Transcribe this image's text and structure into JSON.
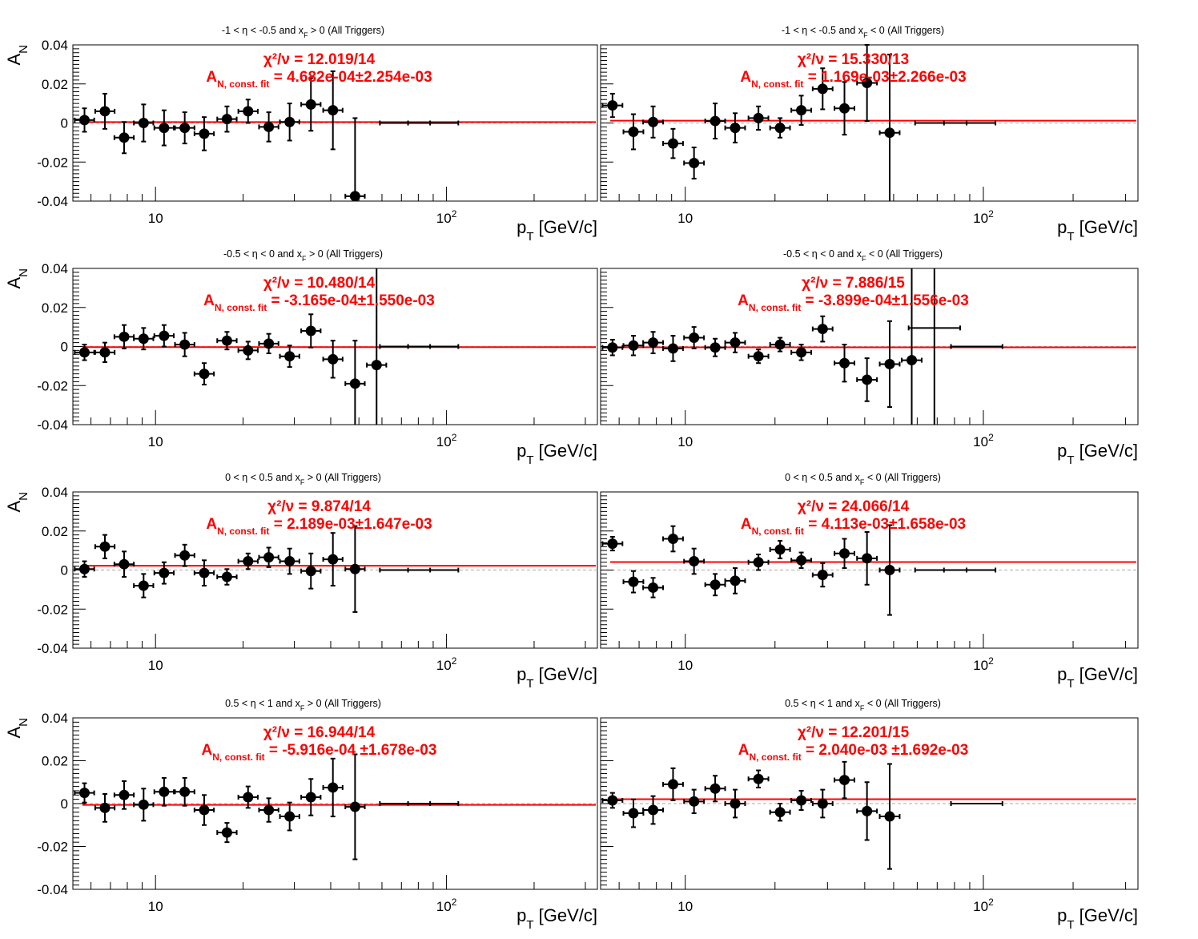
{
  "chart_data": [
    {
      "type": "scatter",
      "title": "-1 < η < -0.5 and x_F > 0 (All Triggers)",
      "title_parts": {
        "pre": "-1 < η < -0.5 and x",
        "sub": "F",
        "post": " > 0 (All Triggers)"
      },
      "xlabel": "p_T [GeV/c]",
      "ylabel": "A_N",
      "x_scale": "log",
      "xlim": [
        5.2,
        330
      ],
      "ylim": [
        -0.04,
        0.04
      ],
      "x_ticks": [
        "10",
        "10^2"
      ],
      "y_ticks": [
        "0.04",
        "0.02",
        "0",
        "-0.02",
        "-0.04"
      ],
      "fit": {
        "chi2": "χ²/ν = 12.019/14",
        "label": "A",
        "label_sub": "N, const. fit",
        "value": " = 4.682e-04±2.254e-03",
        "constant": 0.000468
      },
      "series": [
        {
          "x": [
            5.7,
            6.7,
            7.8,
            9.1,
            10.7,
            12.6,
            14.7,
            17.6,
            20.8,
            24.5,
            28.9,
            34.2,
            40.7,
            48.5,
            72,
            90
          ],
          "y": [
            0.0015,
            0.006,
            -0.0075,
            0.0,
            -0.0025,
            -0.0025,
            -0.0055,
            0.002,
            0.006,
            -0.002,
            0.0005,
            0.0095,
            0.0065,
            -0.0375,
            0.0,
            0.0
          ],
          "yerr": [
            0.006,
            0.009,
            0.008,
            0.0095,
            0.009,
            0.008,
            0.0085,
            0.0065,
            0.006,
            0.0075,
            0.0095,
            0.0135,
            0.02,
            0.04,
            0.0,
            0.0
          ]
        }
      ]
    },
    {
      "type": "scatter",
      "title": "-1 < η < -0.5 and x_F < 0 (All Triggers)",
      "title_parts": {
        "pre": "-1 < η < -0.5 and x",
        "sub": "F",
        "post": " < 0 (All Triggers)"
      },
      "xlabel": "p_T [GeV/c]",
      "ylabel": "A_N",
      "x_scale": "log",
      "xlim": [
        5.2,
        330
      ],
      "ylim": [
        -0.04,
        0.04
      ],
      "x_ticks": [
        "10",
        "10^2"
      ],
      "y_ticks": [],
      "fit": {
        "chi2": "χ²/ν = 15.330/13",
        "label": "A",
        "label_sub": "N, const. fit",
        "value": " = 1.169e-03±2.266e-03",
        "constant": 0.00117
      },
      "series": [
        {
          "x": [
            5.7,
            6.7,
            7.8,
            9.1,
            10.7,
            12.6,
            14.7,
            17.6,
            20.8,
            24.5,
            28.9,
            34.2,
            40.7,
            48.5,
            72,
            90
          ],
          "y": [
            0.009,
            -0.0045,
            0.0005,
            -0.0105,
            -0.0205,
            0.001,
            -0.0025,
            0.0025,
            -0.0025,
            0.0065,
            0.0175,
            0.0075,
            0.0205,
            -0.005,
            0.0,
            0.0
          ],
          "yerr": [
            0.006,
            0.009,
            0.008,
            0.0075,
            0.008,
            0.009,
            0.0075,
            0.006,
            0.005,
            0.0075,
            0.0105,
            0.0135,
            0.0195,
            0.04,
            0.0,
            0.0
          ]
        }
      ]
    },
    {
      "type": "scatter",
      "title": "-0.5 < η < 0 and x_F > 0 (All Triggers)",
      "title_parts": {
        "pre": "-0.5 < η < 0 and x",
        "sub": "F",
        "post": " > 0 (All Triggers)"
      },
      "xlabel": "p_T [GeV/c]",
      "ylabel": "A_N",
      "x_scale": "log",
      "xlim": [
        5.2,
        330
      ],
      "ylim": [
        -0.04,
        0.04
      ],
      "x_ticks": [
        "10",
        "10^2"
      ],
      "y_ticks": [
        "0.04",
        "0.02",
        "0",
        "-0.02",
        "-0.04"
      ],
      "fit": {
        "chi2": "χ²/ν = 10.480/14",
        "label": "A",
        "label_sub": "N, const. fit",
        "value": " = -3.165e-04±1.550e-03",
        "constant": -0.000317
      },
      "series": [
        {
          "x": [
            5.7,
            6.7,
            7.8,
            9.1,
            10.7,
            12.6,
            14.7,
            17.6,
            20.8,
            24.5,
            28.9,
            34.2,
            40.7,
            48.5,
            57.5,
            72,
            90
          ],
          "y": [
            -0.003,
            -0.003,
            0.005,
            0.004,
            0.0055,
            0.001,
            -0.014,
            0.003,
            -0.002,
            0.0015,
            -0.005,
            0.008,
            -0.0065,
            -0.019,
            -0.0095,
            0.0,
            0.0
          ],
          "yerr": [
            0.004,
            0.005,
            0.006,
            0.0055,
            0.0055,
            0.006,
            0.0055,
            0.0045,
            0.0045,
            0.005,
            0.0055,
            0.0085,
            0.0095,
            0.022,
            0.05,
            0.0,
            0.0
          ]
        }
      ]
    },
    {
      "type": "scatter",
      "title": "-0.5 < η < 0 and x_F < 0 (All Triggers)",
      "title_parts": {
        "pre": "-0.5 < η < 0 and x",
        "sub": "F",
        "post": " < 0 (All Triggers)"
      },
      "xlabel": "p_T [GeV/c]",
      "ylabel": "A_N",
      "x_scale": "log",
      "xlim": [
        5.2,
        330
      ],
      "ylim": [
        -0.04,
        0.04
      ],
      "x_ticks": [
        "10",
        "10^2"
      ],
      "y_ticks": [],
      "fit": {
        "chi2": "χ²/ν = 7.886/15",
        "label": "A",
        "label_sub": "N, const. fit",
        "value": " = -3.899e-04±1.556e-03",
        "constant": -0.00039
      },
      "series": [
        {
          "x": [
            5.7,
            6.7,
            7.8,
            9.1,
            10.7,
            12.6,
            14.7,
            17.6,
            20.8,
            24.5,
            28.9,
            34.2,
            40.7,
            48.5,
            57.5,
            68.5,
            95
          ],
          "y": [
            -0.0005,
            0.0005,
            0.002,
            -0.001,
            0.0045,
            -0.0005,
            0.002,
            -0.005,
            0.001,
            -0.003,
            0.009,
            -0.0085,
            -0.017,
            -0.009,
            -0.007,
            0.0095,
            0.0
          ],
          "yerr": [
            0.004,
            0.005,
            0.0055,
            0.0065,
            0.0055,
            0.0045,
            0.005,
            0.0035,
            0.0035,
            0.004,
            0.0065,
            0.0095,
            0.011,
            0.022,
            0.05,
            0.05,
            0.0
          ]
        }
      ]
    },
    {
      "type": "scatter",
      "title": "0 < η < 0.5 and x_F > 0 (All Triggers)",
      "title_parts": {
        "pre": "0 < η < 0.5 and x",
        "sub": "F",
        "post": " > 0 (All Triggers)"
      },
      "xlabel": "p_T [GeV/c]",
      "ylabel": "A_N",
      "x_scale": "log",
      "xlim": [
        5.2,
        330
      ],
      "ylim": [
        -0.04,
        0.04
      ],
      "x_ticks": [
        "10",
        "10^2"
      ],
      "y_ticks": [
        "0.04",
        "0.02",
        "0",
        "-0.02",
        "-0.04"
      ],
      "fit": {
        "chi2": "χ²/ν = 9.874/14",
        "label": "A",
        "label_sub": "N, const. fit",
        "value": " = 2.189e-03±1.647e-03",
        "constant": 0.00219
      },
      "series": [
        {
          "x": [
            5.7,
            6.7,
            7.8,
            9.1,
            10.7,
            12.6,
            14.7,
            17.6,
            20.8,
            24.5,
            28.9,
            34.2,
            40.7,
            48.5,
            72,
            90
          ],
          "y": [
            0.0005,
            0.012,
            0.003,
            -0.008,
            -0.0015,
            0.0075,
            -0.0015,
            -0.0035,
            0.0045,
            0.0065,
            0.0045,
            -0.0005,
            0.0055,
            0.0005,
            0.0,
            0.0
          ],
          "yerr": [
            0.004,
            0.006,
            0.0065,
            0.006,
            0.0055,
            0.0055,
            0.0065,
            0.004,
            0.004,
            0.005,
            0.0065,
            0.009,
            0.0135,
            0.022,
            0.0,
            0.0
          ]
        }
      ]
    },
    {
      "type": "scatter",
      "title": "0 < η < 0.5 and x_F < 0 (All Triggers)",
      "title_parts": {
        "pre": "0 < η < 0.5 and x",
        "sub": "F",
        "post": " < 0 (All Triggers)"
      },
      "xlabel": "p_T [GeV/c]",
      "ylabel": "A_N",
      "x_scale": "log",
      "xlim": [
        5.2,
        330
      ],
      "ylim": [
        -0.04,
        0.04
      ],
      "x_ticks": [
        "10",
        "10^2"
      ],
      "y_ticks": [],
      "fit": {
        "chi2": "χ²/ν = 24.066/14",
        "label": "A",
        "label_sub": "N, const. fit",
        "value": " = 4.113e-03±1.658e-03",
        "constant": 0.00411
      },
      "series": [
        {
          "x": [
            5.7,
            6.7,
            7.8,
            9.1,
            10.7,
            12.6,
            14.7,
            17.6,
            20.8,
            24.5,
            28.9,
            34.2,
            40.7,
            48.5,
            72,
            90
          ],
          "y": [
            0.0135,
            -0.006,
            -0.009,
            0.016,
            0.0045,
            -0.0075,
            -0.0055,
            0.004,
            0.0105,
            0.005,
            -0.0025,
            0.0085,
            0.006,
            0.0,
            0.0,
            0.0
          ],
          "yerr": [
            0.0035,
            0.0055,
            0.005,
            0.0065,
            0.0065,
            0.0055,
            0.0065,
            0.004,
            0.0045,
            0.004,
            0.006,
            0.0075,
            0.0135,
            0.023,
            0.0,
            0.0
          ]
        }
      ]
    },
    {
      "type": "scatter",
      "title": "0.5 < η < 1 and x_F > 0 (All Triggers)",
      "title_parts": {
        "pre": "0.5 < η < 1 and x",
        "sub": "F",
        "post": " > 0 (All Triggers)"
      },
      "xlabel": "p_T [GeV/c]",
      "ylabel": "A_N",
      "x_scale": "log",
      "xlim": [
        5.2,
        330
      ],
      "ylim": [
        -0.04,
        0.04
      ],
      "x_ticks": [
        "10",
        "10^2"
      ],
      "y_ticks": [
        "0.04",
        "0.02",
        "0",
        "-0.02",
        "-0.04"
      ],
      "fit": {
        "chi2": "χ²/ν = 16.944/14",
        "label": "A",
        "label_sub": "N, const. fit",
        "value": " = -5.916e-04 ±1.678e-03",
        "constant": -0.000592
      },
      "series": [
        {
          "x": [
            5.7,
            6.7,
            7.8,
            9.1,
            10.7,
            12.6,
            14.7,
            17.6,
            20.8,
            24.5,
            28.9,
            34.2,
            40.7,
            48.5,
            72,
            90
          ],
          "y": [
            0.005,
            -0.002,
            0.004,
            -0.0005,
            0.0055,
            0.0055,
            -0.003,
            -0.0135,
            0.003,
            -0.003,
            -0.006,
            0.003,
            0.0075,
            -0.0015,
            0.0,
            0.0
          ],
          "yerr": [
            0.0045,
            0.0065,
            0.0065,
            0.0075,
            0.0065,
            0.0065,
            0.007,
            0.0045,
            0.005,
            0.0055,
            0.0065,
            0.0085,
            0.0135,
            0.0245,
            0.0,
            0.0
          ]
        }
      ]
    },
    {
      "type": "scatter",
      "title": "0.5 < η < 1 and x_F < 0 (All Triggers)",
      "title_parts": {
        "pre": "0.5 < η < 1 and x",
        "sub": "F",
        "post": " < 0 (All Triggers)"
      },
      "xlabel": "p_T [GeV/c]",
      "ylabel": "A_N",
      "x_scale": "log",
      "xlim": [
        5.2,
        330
      ],
      "ylim": [
        -0.04,
        0.04
      ],
      "x_ticks": [
        "10",
        "10^2"
      ],
      "y_ticks": [],
      "fit": {
        "chi2": "χ²/ν = 12.201/15",
        "label": "A",
        "label_sub": "N, const. fit",
        "value": " = 2.040e-03 ±1.692e-03",
        "constant": 0.00204
      },
      "series": [
        {
          "x": [
            5.7,
            6.7,
            7.8,
            9.1,
            10.7,
            12.6,
            14.7,
            17.6,
            20.8,
            24.5,
            28.9,
            34.2,
            40.7,
            48.5,
            95
          ],
          "y": [
            0.0015,
            -0.0045,
            -0.003,
            0.009,
            0.001,
            0.007,
            0.0,
            0.0115,
            -0.004,
            0.0015,
            0.0,
            0.011,
            -0.0035,
            -0.006,
            0.0
          ],
          "yerr": [
            0.0035,
            0.0065,
            0.0065,
            0.0075,
            0.0055,
            0.006,
            0.0065,
            0.004,
            0.004,
            0.0045,
            0.0065,
            0.0085,
            0.0135,
            0.0245,
            0.0
          ]
        }
      ]
    }
  ],
  "colors": {
    "fit_line": "#ff0000",
    "zero_line": "#bbbbbb",
    "markers": "#000000",
    "fit_text": "#ff0000"
  }
}
